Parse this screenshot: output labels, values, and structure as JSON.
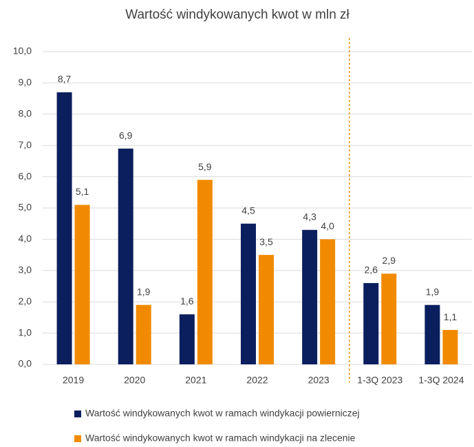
{
  "chart_data": {
    "type": "bar",
    "title": "Wartość windykowanych kwot w mln zł",
    "categories": [
      "2019",
      "2020",
      "2021",
      "2022",
      "2023",
      "1-3Q 2023",
      "1-3Q 2024"
    ],
    "series": [
      {
        "name": "Wartość windykowanych kwot w ramach windykacji powierniczej",
        "color": "#0b1f5e",
        "values": [
          8.7,
          6.9,
          1.6,
          4.5,
          4.3,
          2.6,
          1.9
        ],
        "value_labels": [
          "8,7",
          "6,9",
          "1,6",
          "4,5",
          "4,3",
          "2,6",
          "1,9"
        ]
      },
      {
        "name": "Wartość windykowanych kwot w ramach windykacji na zlecenie",
        "color": "#f28a00",
        "values": [
          5.1,
          1.9,
          5.9,
          3.5,
          4.0,
          2.9,
          1.1
        ],
        "value_labels": [
          "5,1",
          "1,9",
          "5,9",
          "3,5",
          "4,0",
          "2,9",
          "1,1"
        ]
      }
    ],
    "ylim": [
      0,
      10
    ],
    "yticks": [
      {
        "value": 0,
        "label": "0,0"
      },
      {
        "value": 1,
        "label": "1,0"
      },
      {
        "value": 2,
        "label": "2,0"
      },
      {
        "value": 3,
        "label": "3,0"
      },
      {
        "value": 4,
        "label": "4,0"
      },
      {
        "value": 5,
        "label": "5,0"
      },
      {
        "value": 6,
        "label": "6,0"
      },
      {
        "value": 7,
        "label": "7,0"
      },
      {
        "value": 8,
        "label": "8,0"
      },
      {
        "value": 9,
        "label": "9,0"
      },
      {
        "value": 10,
        "label": "10,0"
      }
    ],
    "grid": true
  }
}
